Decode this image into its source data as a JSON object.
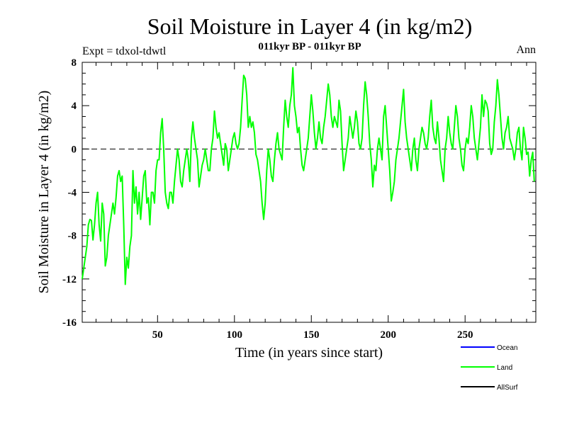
{
  "chart_data": {
    "type": "line",
    "title": "Soil Moisture in Layer 4 (in kg/m2)",
    "subtitle": "011kyr BP - 011kyr BP",
    "expt_label": "Expt = tdxol-tdwtl",
    "period_label": "Ann",
    "xlabel": "Time (in years since start)",
    "ylabel": "Soil Moisture in Layer 4 (in kg/m2)",
    "xlim": [
      1,
      296
    ],
    "ylim": [
      -16,
      8
    ],
    "x_ticks": [
      50,
      100,
      150,
      200,
      250
    ],
    "y_ticks": [
      -16,
      -12,
      -8,
      -4,
      0,
      4,
      8
    ],
    "zero_line": true,
    "grid": false,
    "legend": [
      {
        "name": "Ocean",
        "color": "#0000ff"
      },
      {
        "name": "Land",
        "color": "#00ff00"
      },
      {
        "name": "AllSurf",
        "color": "#000000"
      }
    ],
    "legend_position": "bottom-right",
    "series": [
      {
        "name": "Land",
        "color": "#00ff00",
        "x_start": 1,
        "x_step": 1,
        "values": [
          -12,
          -11,
          -10,
          -9,
          -7,
          -6.5,
          -6.6,
          -8.4,
          -7,
          -5,
          -4,
          -7,
          -8.5,
          -5,
          -6,
          -10.8,
          -10,
          -8,
          -7,
          -6,
          -5,
          -6,
          -4.5,
          -2.5,
          -2,
          -3,
          -2.5,
          -7,
          -12.5,
          -10,
          -11,
          -9,
          -8,
          -2,
          -5,
          -3.5,
          -6,
          -4,
          -6.5,
          -4.5,
          -2.5,
          -2,
          -5,
          -4.5,
          -7,
          -4,
          -4,
          -5,
          -2,
          -1,
          -1,
          1.5,
          2.8,
          0,
          -4,
          -5,
          -5.5,
          -4,
          -4,
          -5,
          -3,
          -1.5,
          0,
          -1,
          -3,
          -3.5,
          -2,
          -1,
          0,
          -1,
          -3,
          1,
          2.5,
          1,
          0,
          -1,
          -3.5,
          -2.5,
          -1.5,
          -1,
          0,
          -1,
          -2,
          -2,
          0,
          1,
          3.5,
          2,
          1,
          1.5,
          0.5,
          -0.5,
          -1.5,
          0.5,
          0,
          -2,
          -1,
          0,
          1,
          1.5,
          0.5,
          0,
          0.5,
          2,
          4.5,
          6.8,
          6.5,
          5,
          2,
          3,
          2,
          2.5,
          1.5,
          -0.5,
          -1,
          -2,
          -3,
          -5,
          -6.5,
          -5,
          -2,
          0,
          -1,
          -2.5,
          -3,
          -1,
          0.5,
          1.5,
          0,
          -0.5,
          -1,
          2,
          4.5,
          3,
          2,
          4,
          5,
          7.5,
          4,
          3,
          1.5,
          2,
          0,
          -1.5,
          -2,
          -1,
          0,
          1,
          3,
          5,
          3.5,
          1.5,
          0,
          1,
          2.5,
          1,
          0.5,
          2,
          3,
          4.5,
          6,
          5,
          3,
          2,
          3,
          2.5,
          2,
          4.5,
          3.5,
          0.5,
          -2,
          -1,
          0,
          1,
          3,
          2,
          1,
          2,
          3.5,
          2.5,
          0.5,
          0,
          1,
          4,
          6.2,
          5,
          3,
          0.5,
          -1,
          -3.5,
          -1.5,
          -2,
          0,
          1,
          0,
          -1,
          3,
          4,
          2,
          0,
          -2,
          -4.8,
          -4,
          -3,
          -1,
          0,
          1,
          2.5,
          4,
          5.5,
          2.5,
          1,
          0,
          -1,
          -2,
          0,
          1,
          -1,
          -2,
          0,
          1,
          2,
          1.5,
          0.5,
          0,
          1,
          3,
          4.5,
          2,
          1,
          0.5,
          2.5,
          1,
          -1,
          -2,
          -3,
          0,
          1,
          3,
          1.5,
          0.5,
          0,
          2,
          4,
          3,
          1,
          0,
          -1.5,
          -2,
          0,
          1,
          0.5,
          2,
          4,
          3,
          1,
          0,
          -1,
          0.5,
          2,
          5,
          3,
          4.5,
          4.2,
          3.5,
          0.5,
          -0.5,
          0,
          2.5,
          4,
          6.4,
          5,
          3,
          1,
          0,
          1.5,
          2,
          3,
          1,
          0.5,
          0,
          -1,
          0,
          1.5,
          2,
          0,
          -1,
          2,
          1,
          -0.5,
          -0.3,
          -2.5,
          -1,
          -0.3,
          -3
        ]
      }
    ]
  }
}
